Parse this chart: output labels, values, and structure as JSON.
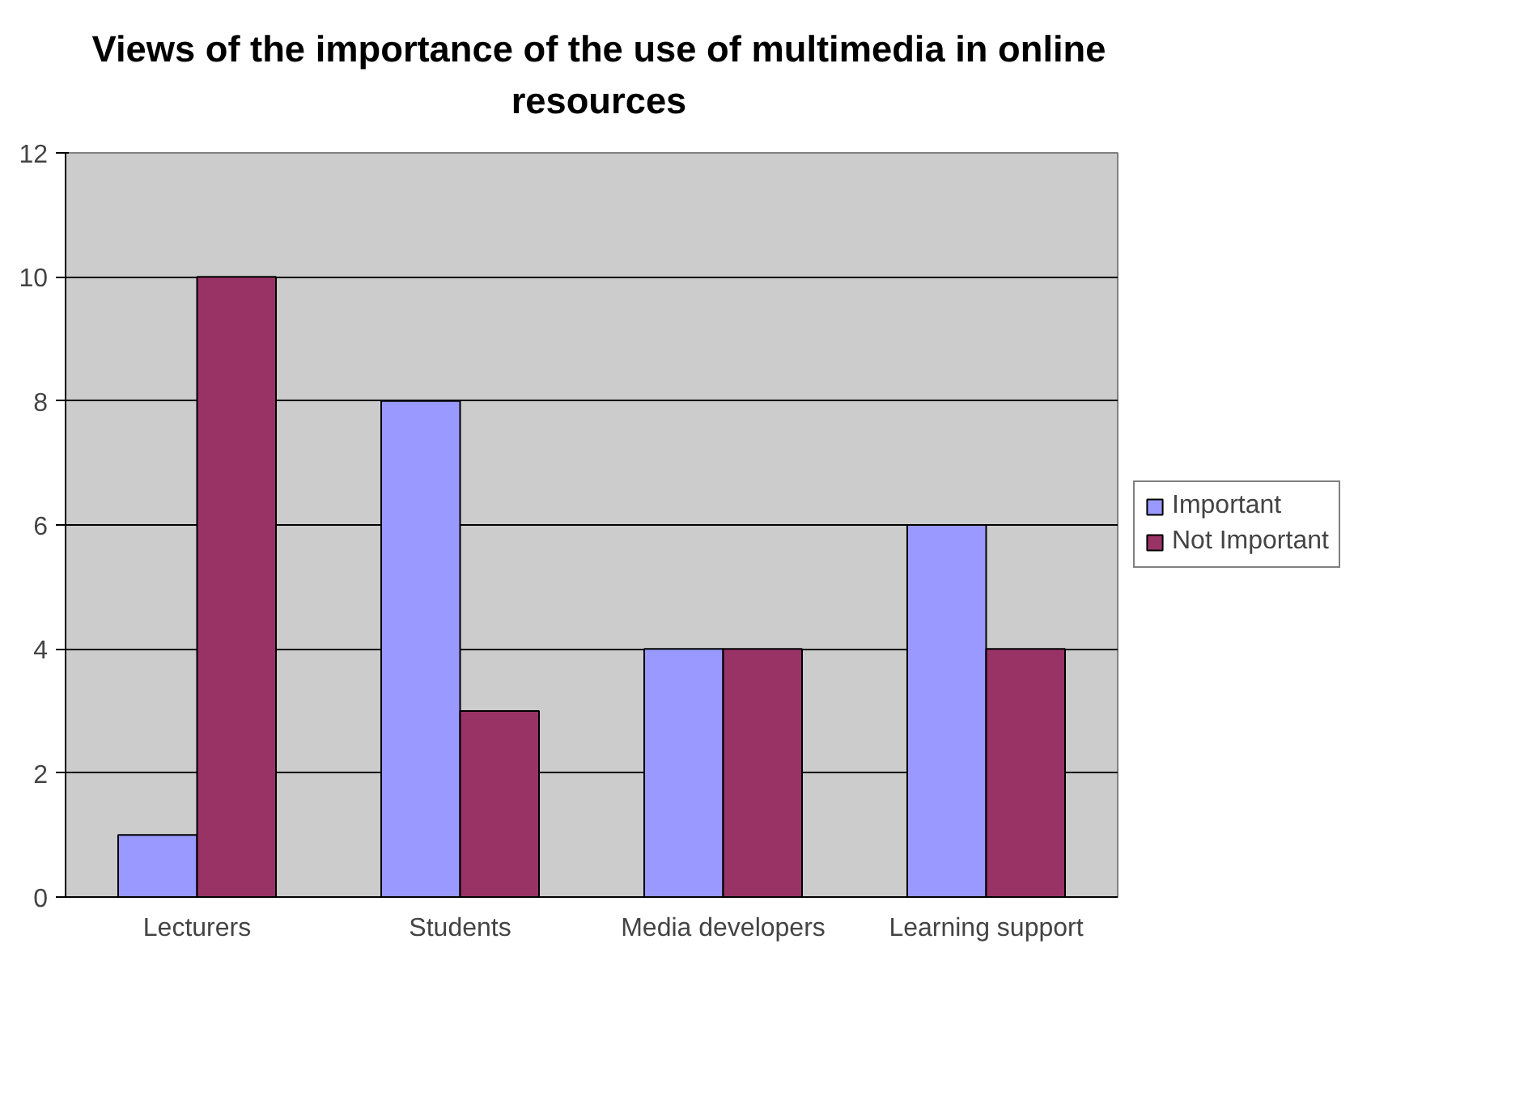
{
  "chart_data": {
    "type": "bar",
    "title": "Views of the importance of the use of multimedia in online resources",
    "categories": [
      "Lecturers",
      "Students",
      "Media developers",
      "Learning support"
    ],
    "series": [
      {
        "name": "Important",
        "color": "#9999ff",
        "values": [
          1,
          8,
          4,
          6
        ]
      },
      {
        "name": "Not Important",
        "color": "#993366",
        "values": [
          10,
          3,
          4,
          4
        ]
      }
    ],
    "ylim": [
      0,
      12
    ],
    "yticks": [
      0,
      2,
      4,
      6,
      8,
      10,
      12
    ],
    "grid": "y",
    "legend": "right"
  }
}
